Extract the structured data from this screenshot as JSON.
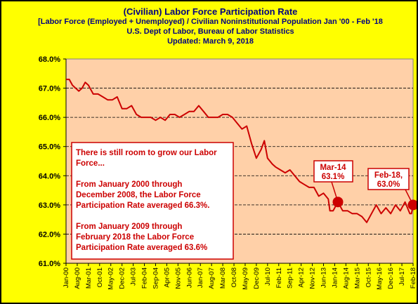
{
  "titles": {
    "title": "(Civilian) Labor Force Participation Rate",
    "subtitle": "[Labor Force (Employed + Unemployed) / Civilian Noninstitutional Population Jan '00 - Feb '18",
    "source": "U.S. Dept of Labor, Bureau of Labor Statistics",
    "updated": "Updated: March 9, 2018"
  },
  "colors": {
    "background": "#ffff00",
    "plot_area": "#ffd0a8",
    "series": "#cc0000",
    "title": "#000080",
    "annotation": "#cc0000"
  },
  "chart_data": {
    "type": "line",
    "title": "(Civilian) Labor Force Participation Rate",
    "ylim": [
      61.0,
      68.0
    ],
    "y_ticks": [
      "61.0%",
      "62.0%",
      "63.0%",
      "64.0%",
      "65.0%",
      "66.0%",
      "67.0%",
      "68.0%"
    ],
    "x_tick_labels": [
      "Jan-00",
      "Aug-00",
      "Mar-01",
      "Oct-01",
      "May-02",
      "Dec-02",
      "Jul-03",
      "Feb-04",
      "Sep-04",
      "Apr-05",
      "Nov-05",
      "Jun-06",
      "Jan-07",
      "Aug-07",
      "Mar-08",
      "Oct-08",
      "May-09",
      "Dec-09",
      "Jul-10",
      "Feb-11",
      "Sep-11",
      "Apr-12",
      "Nov-12",
      "Jun-13",
      "Jan-14",
      "Aug-14",
      "Mar-15",
      "Oct-15",
      "May-16",
      "Dec-16",
      "Jul-17",
      "Feb-18"
    ],
    "x_start": "Jan-00",
    "x_end": "Feb-18",
    "gridlines": true,
    "series": [
      {
        "points": [
          [
            "Jan-00",
            67.3
          ],
          [
            "Mar-00",
            67.3
          ],
          [
            "May-00",
            67.1
          ],
          [
            "Jul-00",
            67.0
          ],
          [
            "Sep-00",
            66.9
          ],
          [
            "Nov-00",
            67.0
          ],
          [
            "Jan-01",
            67.2
          ],
          [
            "Mar-01",
            67.1
          ],
          [
            "Jun-01",
            66.8
          ],
          [
            "Sep-01",
            66.8
          ],
          [
            "Dec-01",
            66.7
          ],
          [
            "Mar-02",
            66.6
          ],
          [
            "Jun-02",
            66.6
          ],
          [
            "Sep-02",
            66.7
          ],
          [
            "Dec-02",
            66.3
          ],
          [
            "Mar-03",
            66.3
          ],
          [
            "Jun-03",
            66.4
          ],
          [
            "Sep-03",
            66.1
          ],
          [
            "Dec-03",
            66.0
          ],
          [
            "Mar-04",
            66.0
          ],
          [
            "Jun-04",
            66.0
          ],
          [
            "Sep-04",
            65.9
          ],
          [
            "Dec-04",
            66.0
          ],
          [
            "Mar-05",
            65.9
          ],
          [
            "Jun-05",
            66.1
          ],
          [
            "Sep-05",
            66.1
          ],
          [
            "Dec-05",
            66.0
          ],
          [
            "Mar-06",
            66.1
          ],
          [
            "Jun-06",
            66.2
          ],
          [
            "Sep-06",
            66.2
          ],
          [
            "Dec-06",
            66.4
          ],
          [
            "Mar-07",
            66.2
          ],
          [
            "Jun-07",
            66.0
          ],
          [
            "Sep-07",
            66.0
          ],
          [
            "Dec-07",
            66.0
          ],
          [
            "Mar-08",
            66.1
          ],
          [
            "Jun-08",
            66.1
          ],
          [
            "Sep-08",
            66.0
          ],
          [
            "Dec-08",
            65.8
          ],
          [
            "Mar-09",
            65.6
          ],
          [
            "Jun-09",
            65.7
          ],
          [
            "Sep-09",
            65.1
          ],
          [
            "Dec-09",
            64.6
          ],
          [
            "Mar-10",
            64.9
          ],
          [
            "May-10",
            65.2
          ],
          [
            "Jul-10",
            64.6
          ],
          [
            "Oct-10",
            64.4
          ],
          [
            "Dec-10",
            64.3
          ],
          [
            "Mar-11",
            64.2
          ],
          [
            "Jun-11",
            64.1
          ],
          [
            "Sep-11",
            64.2
          ],
          [
            "Dec-11",
            64.0
          ],
          [
            "Mar-12",
            63.8
          ],
          [
            "Jun-12",
            63.7
          ],
          [
            "Sep-12",
            63.6
          ],
          [
            "Dec-12",
            63.6
          ],
          [
            "Mar-13",
            63.3
          ],
          [
            "Jun-13",
            63.4
          ],
          [
            "Sep-13",
            63.2
          ],
          [
            "Oct-13",
            62.8
          ],
          [
            "Dec-13",
            62.8
          ],
          [
            "Mar-14",
            63.1
          ],
          [
            "Jun-14",
            62.8
          ],
          [
            "Sep-14",
            62.8
          ],
          [
            "Dec-14",
            62.7
          ],
          [
            "Mar-15",
            62.7
          ],
          [
            "Jun-15",
            62.6
          ],
          [
            "Sep-15",
            62.4
          ],
          [
            "Dec-15",
            62.7
          ],
          [
            "Mar-16",
            63.0
          ],
          [
            "Jun-16",
            62.7
          ],
          [
            "Sep-16",
            62.9
          ],
          [
            "Dec-16",
            62.7
          ],
          [
            "Mar-17",
            63.0
          ],
          [
            "Jun-17",
            62.8
          ],
          [
            "Sep-17",
            63.1
          ],
          [
            "Dec-17",
            62.7
          ],
          [
            "Jan-18",
            62.7
          ],
          [
            "Feb-18",
            63.0
          ]
        ]
      }
    ],
    "callouts": [
      {
        "label": "Mar-14",
        "value_label": "63.1%",
        "x": "Mar-14",
        "y": 63.1
      },
      {
        "label": "Feb-18,",
        "value_label": "63.0%",
        "x": "Feb-18",
        "y": 63.0
      }
    ]
  },
  "annotation_box": {
    "lines": [
      "There is still room to grow our Labor",
      "Force...",
      "",
      "From January 2000 through",
      "December 2008, the Labor Force",
      "Participation Rate averaged 66.3%.",
      "",
      "From January 2009 through",
      "February 2018 the Labor Force",
      "Participation Rate averaged 63.6%"
    ]
  }
}
